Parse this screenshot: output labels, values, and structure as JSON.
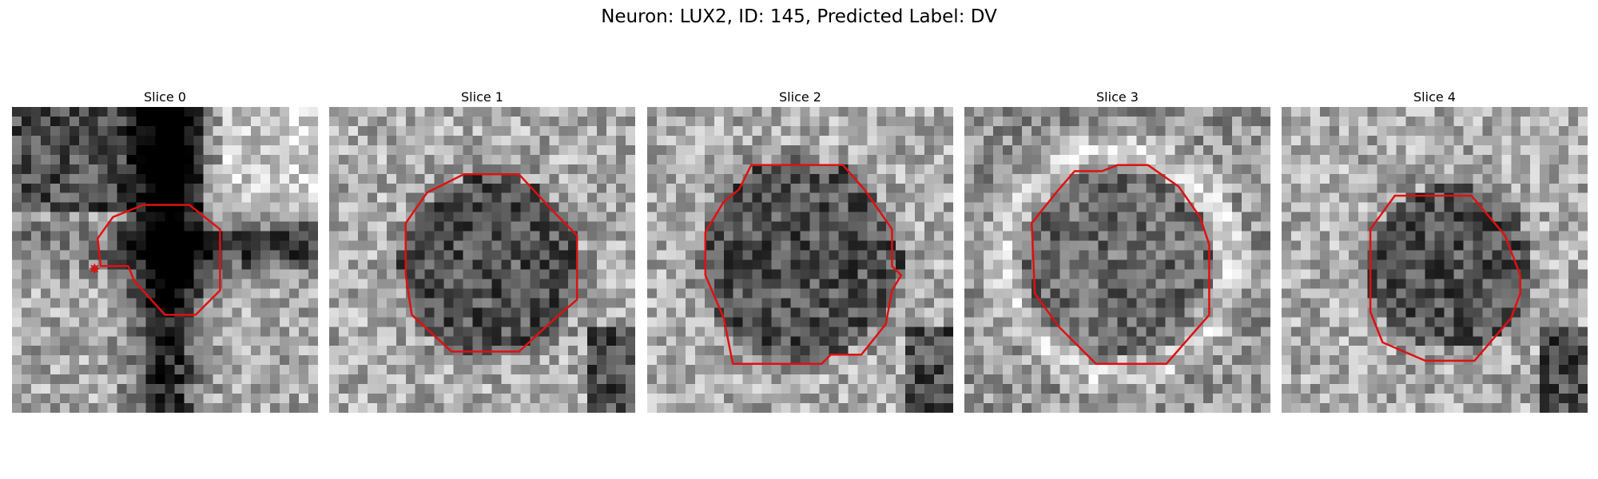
{
  "figure": {
    "title": "Neuron: LUX2, ID: 145, Predicted Label: DV"
  },
  "panels": [
    {
      "title": "Slice 0",
      "seed": 11,
      "mode": "cross",
      "center": [
        0.5,
        0.5
      ],
      "radius": 0.18
    },
    {
      "title": "Slice 1",
      "seed": 23,
      "mode": "dark-blob",
      "center": [
        0.53,
        0.52
      ],
      "radius": 0.3
    },
    {
      "title": "Slice 2",
      "seed": 37,
      "mode": "dark-blob",
      "center": [
        0.5,
        0.5
      ],
      "radius": 0.33
    },
    {
      "title": "Slice 3",
      "seed": 49,
      "mode": "ring-blob",
      "center": [
        0.5,
        0.51
      ],
      "radius": 0.31
    },
    {
      "title": "Slice 4",
      "seed": 61,
      "mode": "dark-blob",
      "center": [
        0.55,
        0.52
      ],
      "radius": 0.27
    }
  ],
  "colors": {
    "contour": "#e01010",
    "marker": "#d01818"
  }
}
